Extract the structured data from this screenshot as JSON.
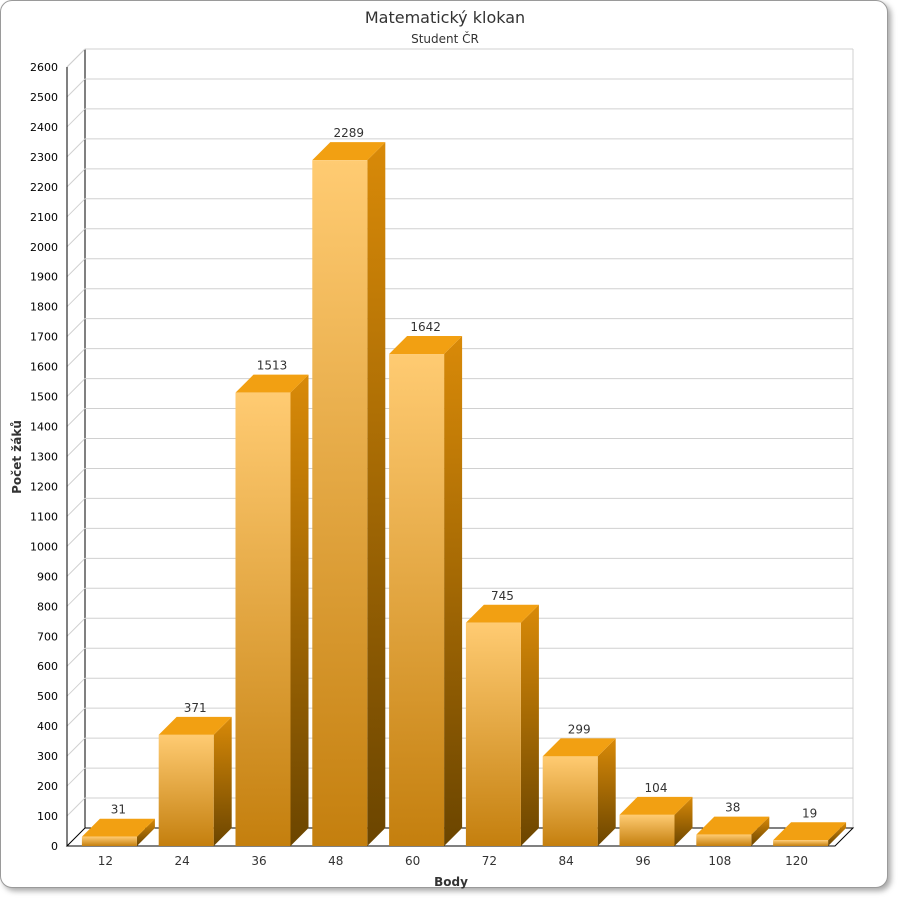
{
  "chart_data": {
    "type": "bar",
    "title": "Matematický klokan",
    "subtitle": "Student ČR",
    "xlabel": "Body",
    "ylabel": "Počet žáků",
    "categories": [
      "12",
      "24",
      "36",
      "48",
      "60",
      "72",
      "84",
      "96",
      "108",
      "120"
    ],
    "values": [
      31,
      371,
      1513,
      2289,
      1642,
      745,
      299,
      104,
      38,
      19
    ],
    "ylim": [
      0,
      2600
    ],
    "ytick_step": 100,
    "grid": true,
    "three_d": true,
    "legend": "none",
    "colors": {
      "bar_front_top": "#FFCB72",
      "bar_front_bottom": "#C47F0E",
      "bar_top": "#F2A012",
      "bar_side_top": "#D98A08",
      "bar_side_bottom": "#6B4500",
      "grid": "#D0D0D0",
      "axis": "#000000",
      "text": "#333333"
    }
  }
}
